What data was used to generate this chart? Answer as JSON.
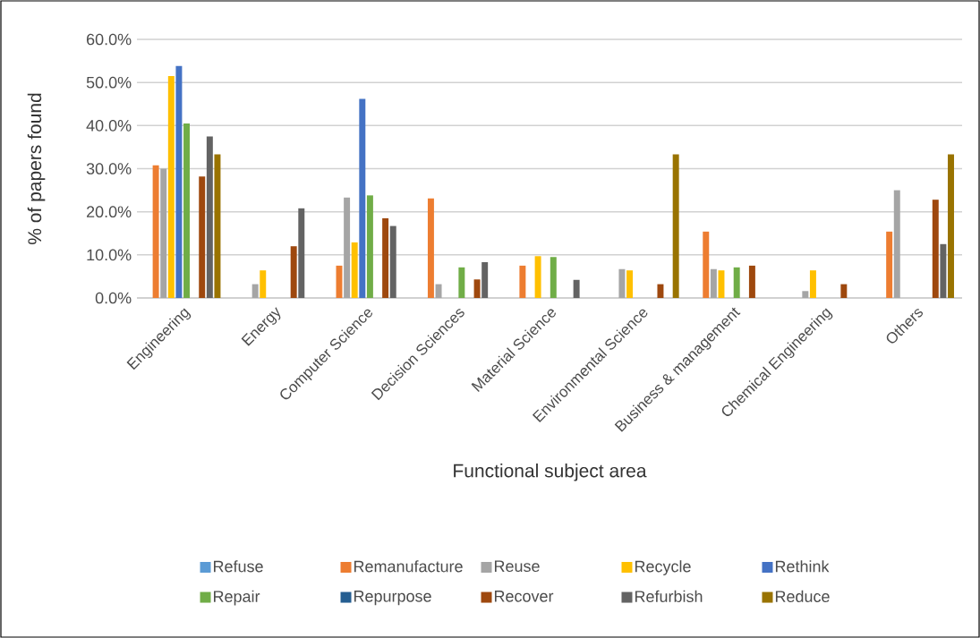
{
  "chart_data": {
    "type": "bar",
    "xlabel": "Functional subject area",
    "ylabel": "% of papers found",
    "categories": [
      "Engineering",
      "Energy",
      "Computer Science",
      "Decision Sciences",
      "Material Science",
      "Environmental Science",
      "Business & management",
      "Chemical Engineering",
      "Others"
    ],
    "series": [
      {
        "name": "Refuse",
        "color": "#5b9bd5",
        "values": [
          null,
          null,
          null,
          null,
          null,
          null,
          null,
          null,
          null
        ]
      },
      {
        "name": "Remanufacture",
        "color": "#ed7d31",
        "values": [
          30.8,
          null,
          7.5,
          23.1,
          7.5,
          null,
          15.4,
          null,
          15.4
        ]
      },
      {
        "name": "Reuse",
        "color": "#a5a5a5",
        "values": [
          30.0,
          3.2,
          23.3,
          3.2,
          null,
          6.7,
          6.7,
          1.6,
          25.0
        ]
      },
      {
        "name": "Recycle",
        "color": "#ffc000",
        "values": [
          51.5,
          6.4,
          12.9,
          null,
          9.7,
          6.4,
          6.4,
          6.4,
          null
        ]
      },
      {
        "name": "Rethink",
        "color": "#4472c4",
        "values": [
          53.8,
          null,
          46.2,
          null,
          null,
          null,
          null,
          null,
          null
        ]
      },
      {
        "name": "Repair",
        "color": "#70ad47",
        "values": [
          40.5,
          null,
          23.8,
          7.1,
          9.5,
          null,
          7.1,
          null,
          null
        ]
      },
      {
        "name": "Repurpose",
        "color": "#255e91",
        "values": [
          null,
          null,
          null,
          null,
          null,
          null,
          null,
          null,
          null
        ]
      },
      {
        "name": "Recover",
        "color": "#9e480e",
        "values": [
          28.2,
          12.0,
          18.5,
          4.3,
          null,
          3.2,
          7.5,
          3.2,
          22.8
        ]
      },
      {
        "name": "Refurbish",
        "color": "#636363",
        "values": [
          37.5,
          20.8,
          16.7,
          8.3,
          4.2,
          null,
          null,
          null,
          12.5
        ]
      },
      {
        "name": "Reduce",
        "color": "#997300",
        "values": [
          33.3,
          null,
          null,
          null,
          null,
          33.3,
          null,
          null,
          33.3
        ]
      }
    ],
    "ylim": [
      0,
      60
    ],
    "yticks": [
      {
        "value": 0,
        "label": "0.0%"
      },
      {
        "value": 10,
        "label": "10.0%"
      },
      {
        "value": 20,
        "label": "20.0%"
      },
      {
        "value": 30,
        "label": "30.0%"
      },
      {
        "value": 40,
        "label": "40.0%"
      },
      {
        "value": 50,
        "label": "50.0%"
      },
      {
        "value": 60,
        "label": "60.0%"
      }
    ],
    "grid": "y",
    "legend": "bottom"
  }
}
